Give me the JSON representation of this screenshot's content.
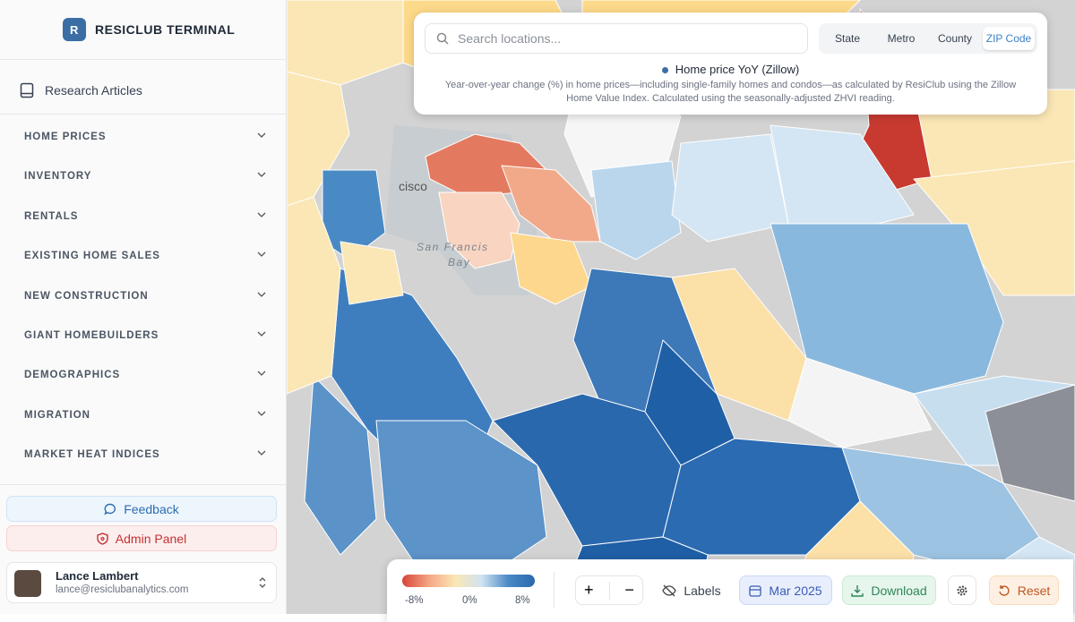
{
  "sidebar": {
    "brand": "RESICLUB TERMINAL",
    "research": "Research Articles",
    "menu": [
      "HOME PRICES",
      "INVENTORY",
      "RENTALS",
      "EXISTING HOME SALES",
      "NEW CONSTRUCTION",
      "GIANT HOMEBUILDERS",
      "DEMOGRAPHICS",
      "MIGRATION",
      "MARKET HEAT INDICES"
    ],
    "feedback": "Feedback",
    "admin": "Admin Panel",
    "user": {
      "name": "Lance Lambert",
      "email": "lance@resiclubanalytics.com"
    }
  },
  "map": {
    "labels": [
      "cisco",
      "San Francis",
      "Bay"
    ]
  },
  "top_panel": {
    "search_placeholder": "Search locations...",
    "tabs": [
      "State",
      "Metro",
      "County",
      "ZIP Code"
    ],
    "legend_title": "Home price YoY (Zillow)",
    "description": "Year-over-year change (%) in home prices—including single-family homes and condos—as calculated by ResiClub using the Zillow Home Value Index. Calculated using the seasonally-adjusted ZHVI reading."
  },
  "bottom_bar": {
    "scale_labels": [
      "-8%",
      "0%",
      "8%"
    ],
    "zoom_in": "+",
    "zoom_out": "−",
    "labels": "Labels",
    "date": "Mar 2025",
    "download": "Download",
    "reset": "Reset"
  }
}
